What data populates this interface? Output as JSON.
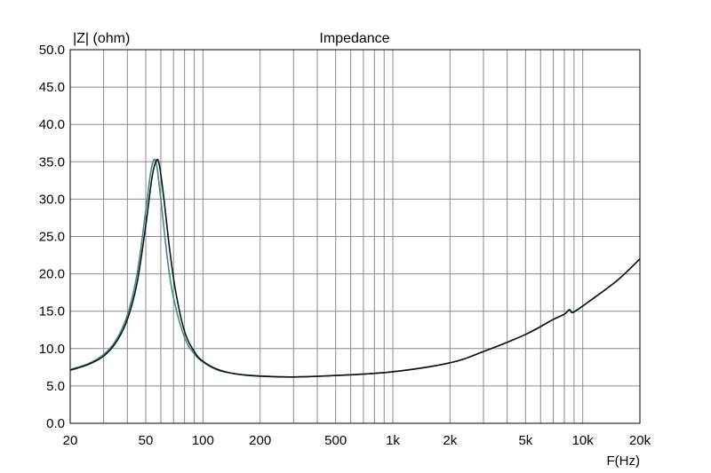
{
  "chart_data": {
    "type": "line",
    "title": "Impedance",
    "ylabel": "|Z| (ohm)",
    "xlabel": "F(Hz)",
    "x_scale": "log",
    "xlim": [
      20,
      20000
    ],
    "ylim": [
      0,
      50
    ],
    "grid": true,
    "x_ticks": [
      {
        "value": 20,
        "label": "20"
      },
      {
        "value": 50,
        "label": "50"
      },
      {
        "value": 100,
        "label": "100"
      },
      {
        "value": 200,
        "label": "200"
      },
      {
        "value": 500,
        "label": "500"
      },
      {
        "value": 1000,
        "label": "1k"
      },
      {
        "value": 2000,
        "label": "2k"
      },
      {
        "value": 5000,
        "label": "5k"
      },
      {
        "value": 10000,
        "label": "10k"
      },
      {
        "value": 20000,
        "label": "20k"
      }
    ],
    "y_ticks": [
      {
        "value": 0,
        "label": "0.0"
      },
      {
        "value": 5,
        "label": "5.0"
      },
      {
        "value": 10,
        "label": "10.0"
      },
      {
        "value": 15,
        "label": "15.0"
      },
      {
        "value": 20,
        "label": "20.0"
      },
      {
        "value": 25,
        "label": "25.0"
      },
      {
        "value": 30,
        "label": "30.0"
      },
      {
        "value": 35,
        "label": "35.0"
      },
      {
        "value": 40,
        "label": "40.0"
      },
      {
        "value": 45,
        "label": "45.0"
      },
      {
        "value": 50,
        "label": "50.0"
      }
    ],
    "series": [
      {
        "color": "#3f8c86",
        "points": [
          [
            20,
            7.2
          ],
          [
            25,
            8.0
          ],
          [
            30,
            9.2
          ],
          [
            35,
            11.2
          ],
          [
            40,
            14.5
          ],
          [
            45,
            20.0
          ],
          [
            50,
            28.5
          ],
          [
            53,
            33.5
          ],
          [
            55,
            35.2
          ],
          [
            57,
            34.6
          ],
          [
            60,
            30.0
          ],
          [
            65,
            22.0
          ],
          [
            70,
            16.8
          ],
          [
            80,
            11.5
          ],
          [
            90,
            9.3
          ],
          [
            100,
            8.2
          ],
          [
            120,
            7.1
          ],
          [
            150,
            6.6
          ],
          [
            200,
            6.35
          ],
          [
            300,
            6.2
          ],
          [
            500,
            6.4
          ],
          [
            1000,
            6.9
          ],
          [
            2000,
            8.1
          ],
          [
            3000,
            9.6
          ],
          [
            5000,
            11.9
          ],
          [
            7000,
            13.9
          ],
          [
            8000,
            14.6
          ],
          [
            8500,
            15.2
          ],
          [
            8800,
            14.9
          ],
          [
            9500,
            15.3
          ],
          [
            10000,
            15.7
          ],
          [
            15000,
            19.0
          ],
          [
            20000,
            22.0
          ]
        ]
      },
      {
        "color": "#111111",
        "points": [
          [
            20,
            7.1
          ],
          [
            25,
            7.9
          ],
          [
            30,
            9.0
          ],
          [
            35,
            10.9
          ],
          [
            40,
            13.9
          ],
          [
            45,
            18.8
          ],
          [
            50,
            26.5
          ],
          [
            54,
            33.0
          ],
          [
            57,
            35.2
          ],
          [
            59,
            34.5
          ],
          [
            62,
            30.5
          ],
          [
            67,
            23.0
          ],
          [
            72,
            17.5
          ],
          [
            80,
            12.3
          ],
          [
            90,
            9.6
          ],
          [
            100,
            8.3
          ],
          [
            120,
            7.2
          ],
          [
            150,
            6.6
          ],
          [
            200,
            6.3
          ],
          [
            300,
            6.2
          ],
          [
            500,
            6.4
          ],
          [
            1000,
            6.9
          ],
          [
            2000,
            8.1
          ],
          [
            3000,
            9.6
          ],
          [
            5000,
            11.9
          ],
          [
            7000,
            13.9
          ],
          [
            8000,
            14.6
          ],
          [
            8500,
            15.2
          ],
          [
            8800,
            14.8
          ],
          [
            9500,
            15.3
          ],
          [
            10000,
            15.7
          ],
          [
            15000,
            19.0
          ],
          [
            20000,
            22.0
          ]
        ]
      }
    ]
  }
}
